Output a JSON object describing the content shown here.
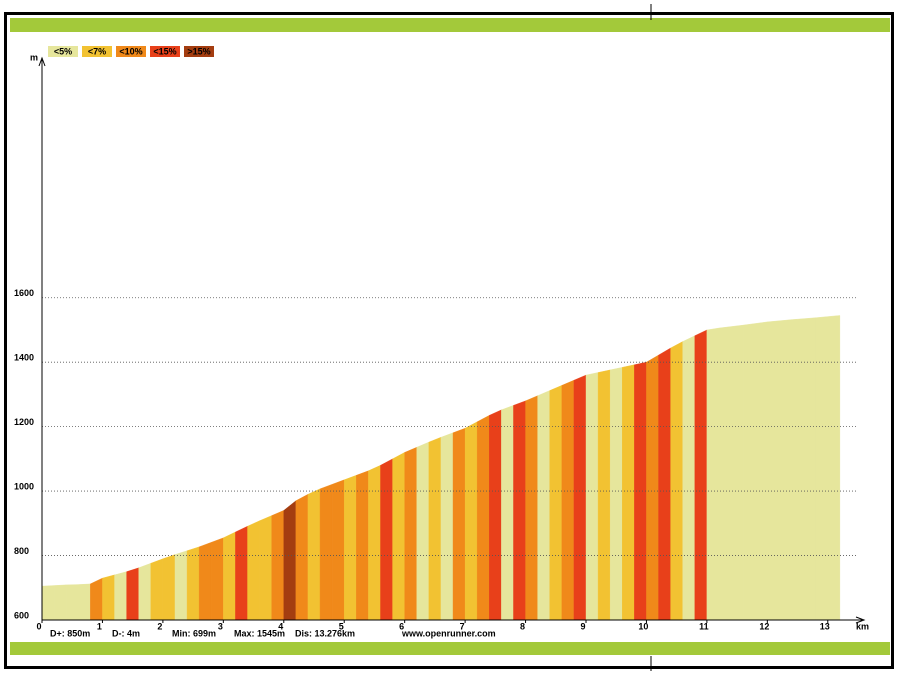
{
  "chart_data": {
    "type": "elevation-profile",
    "y_unit": "m",
    "x_unit": "km",
    "legend": [
      {
        "label": "<5%",
        "color": "#e6e69c"
      },
      {
        "label": "<7%",
        "color": "#f2c232"
      },
      {
        "label": "<10%",
        "color": "#f0891a"
      },
      {
        "label": "<15%",
        "color": "#e8401a"
      },
      {
        "label": ">15%",
        "color": "#a43d10"
      }
    ],
    "x": [
      0,
      0.2,
      0.4,
      0.6,
      0.8,
      1.0,
      1.2,
      1.4,
      1.6,
      1.8,
      2.0,
      2.2,
      2.4,
      2.6,
      2.8,
      3.0,
      3.2,
      3.4,
      3.6,
      3.8,
      4.0,
      4.2,
      4.4,
      4.6,
      4.8,
      5.0,
      5.2,
      5.4,
      5.6,
      5.8,
      6.0,
      6.2,
      6.4,
      6.6,
      6.8,
      7.0,
      7.2,
      7.4,
      7.6,
      7.8,
      8.0,
      8.2,
      8.4,
      8.6,
      8.8,
      9.0,
      9.2,
      9.4,
      9.6,
      9.8,
      10.0,
      10.2,
      10.4,
      10.6,
      10.8,
      11.0,
      11.2,
      11.6,
      12.0,
      12.4,
      12.8,
      13.2
    ],
    "y": [
      705,
      707,
      709,
      710,
      712,
      730,
      740,
      750,
      762,
      776,
      790,
      803,
      815,
      827,
      841,
      855,
      873,
      891,
      908,
      924,
      940,
      970,
      990,
      1007,
      1021,
      1035,
      1049,
      1063,
      1080,
      1100,
      1120,
      1136,
      1152,
      1167,
      1181,
      1195,
      1215,
      1235,
      1252,
      1266,
      1280,
      1296,
      1312,
      1328,
      1344,
      1360,
      1368,
      1376,
      1384,
      1392,
      1400,
      1422,
      1444,
      1464,
      1482,
      1500,
      1506,
      1515,
      1525,
      1532,
      1538,
      1545
    ],
    "grade_class": [
      0,
      0,
      0,
      0,
      2,
      1,
      0,
      3,
      0,
      1,
      1,
      0,
      1,
      2,
      2,
      1,
      3,
      1,
      1,
      2,
      4,
      2,
      1,
      2,
      2,
      1,
      2,
      1,
      3,
      1,
      2,
      0,
      1,
      0,
      2,
      1,
      2,
      3,
      0,
      3,
      2,
      0,
      1,
      2,
      3,
      0,
      1,
      0,
      1,
      3,
      2,
      3,
      1,
      0,
      3,
      0,
      0,
      0,
      0,
      0,
      0
    ],
    "xlim": [
      0,
      13.5
    ],
    "ylim": [
      600,
      2350
    ],
    "xticks": [
      0,
      1,
      2,
      3,
      4,
      5,
      6,
      7,
      8,
      9,
      10,
      11,
      12,
      13
    ],
    "yticks": [
      600,
      800,
      1000,
      1200,
      1400,
      1600
    ],
    "grid": true,
    "stats": [
      "D+: 850m",
      "D-: 4m",
      "Min: 699m",
      "Max: 1545m",
      "Dis: 13.276km"
    ],
    "source": "www.openrunner.com"
  }
}
